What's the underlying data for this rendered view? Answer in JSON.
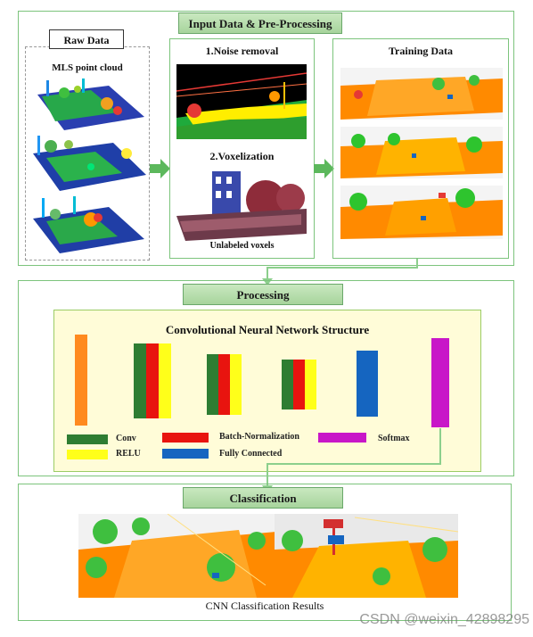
{
  "input_section": {
    "header": "Input Data & Pre-Processing",
    "raw_data": {
      "title": "Raw Data",
      "subtitle": "MLS point cloud"
    },
    "preprocessing": {
      "step1": "1.Noise removal",
      "step2": "2.Voxelization",
      "caption": "Unlabeled voxels"
    },
    "training": {
      "title": "Training Data"
    }
  },
  "processing_section": {
    "header": "Processing",
    "cnn_title": "Convolutional Neural Network Structure",
    "legend": [
      {
        "label": "Conv",
        "color": "#2e7d32"
      },
      {
        "label": "Batch-Normalization",
        "color": "#e8140f"
      },
      {
        "label": "Softmax",
        "color": "#c816c8"
      },
      {
        "label": "RELU",
        "color": "#ffff1a"
      },
      {
        "label": "Fully Connected",
        "color": "#1565c0"
      }
    ]
  },
  "classification_section": {
    "header": "Classification",
    "caption": "CNN Classification Results"
  },
  "watermark": "CSDN @weixin_42898295",
  "colors": {
    "frame": "#7cc47c",
    "header_fill": "#b5dcaa",
    "cnn_panel": "#fffcd8",
    "arrow": "#5cb85c",
    "connector": "#8ccf8c"
  }
}
